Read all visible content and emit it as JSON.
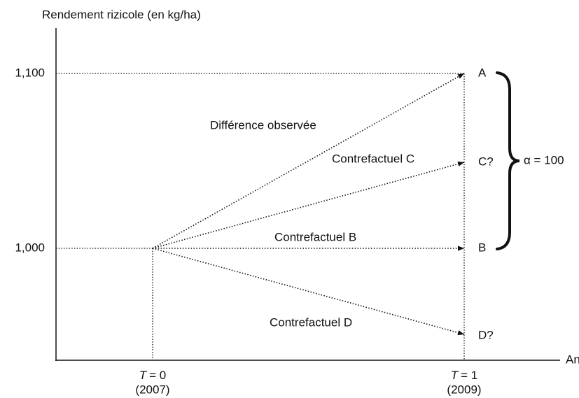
{
  "y_axis_label": "Rendement rizicole (en kg/ha)",
  "x_axis_label": "Année",
  "y_ticks": [
    "1,100",
    "1,000"
  ],
  "x_ticks": [
    {
      "variable": "T",
      "equals": "= 0",
      "year": "(2007)"
    },
    {
      "variable": "T",
      "equals": "= 1",
      "year": "(2009)"
    }
  ],
  "arrows": [
    {
      "label": "Différence observée",
      "end": "A"
    },
    {
      "label": "Contrefactuel C",
      "end": "C?"
    },
    {
      "label": "Contrefactuel B",
      "end": "B"
    },
    {
      "label": "Contrefactuel D",
      "end": "D?"
    }
  ],
  "brace_label": "α = 100"
}
